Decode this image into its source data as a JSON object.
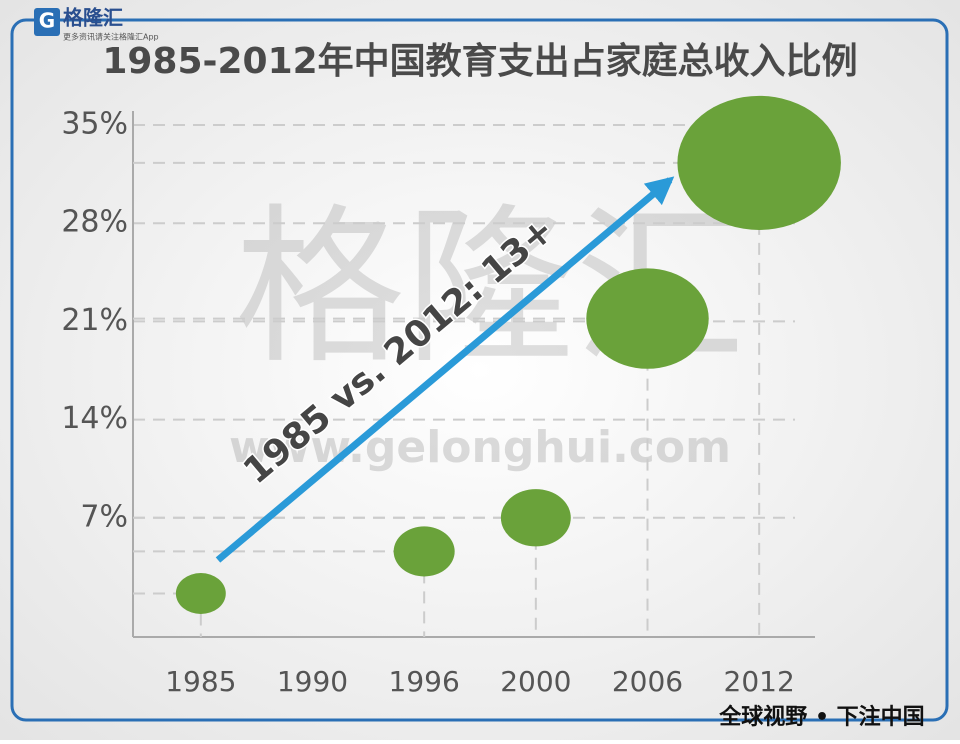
{
  "logo": {
    "name": "格隆汇",
    "tagline": "更多资讯请关注格隆汇App"
  },
  "watermark": {
    "name": "格隆汇",
    "url": "www.gelonghui.com"
  },
  "footer": "全球视野 • 下注中国",
  "chart_data": {
    "type": "bubble",
    "title": "1985-2012年中国教育支出占家庭总收入比例",
    "categories": [
      "1985",
      "1990",
      "1996",
      "2000",
      "2006",
      "2012"
    ],
    "values": [
      1.6,
      null,
      4.6,
      7,
      21.2,
      32.3
    ],
    "color": "#6aa23a",
    "ylim": [
      -1.5,
      36
    ],
    "yticks": [
      {
        "value": 7,
        "label": "7%"
      },
      {
        "value": 14,
        "label": "14%"
      },
      {
        "value": 21,
        "label": "21%"
      },
      {
        "value": 28,
        "label": "28%"
      },
      {
        "value": 35,
        "label": "35%"
      }
    ],
    "grid": true,
    "annotation": "1985 vs. 2012: 13+",
    "arrow_color": "#2a9ad8"
  }
}
